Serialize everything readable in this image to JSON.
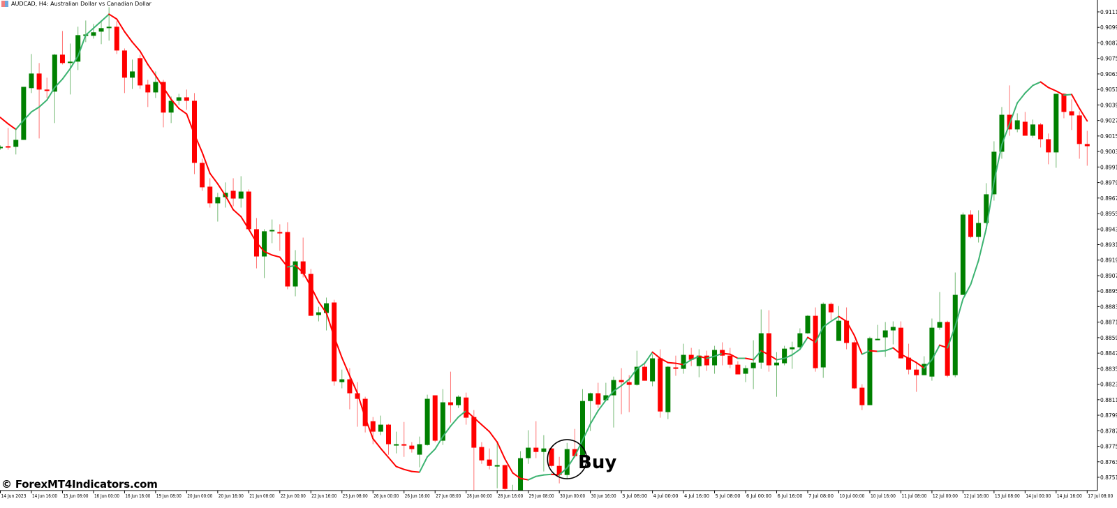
{
  "header": {
    "symbol": "AUDCAD, H4:  Australian Dollar vs Canadian Dollar",
    "icon": "chart-window-icon"
  },
  "watermark": "© ForexMT4Indicators.com",
  "colors": {
    "bull": "#008000",
    "bear": "#ff0000",
    "ma_up": "#3cb371",
    "ma_down": "#ff0000",
    "axis": "#000000",
    "background": "#ffffff"
  },
  "chart_data": {
    "type": "candlestick",
    "title": "AUDCAD, H4:  Australian Dollar vs Canadian Dollar",
    "ylim": [
      0.8745,
      0.9117
    ],
    "grid": false,
    "y_ticks": [
      "0.91110",
      "0.90990",
      "0.90870",
      "0.90750",
      "0.90630",
      "0.90510",
      "0.90390",
      "0.90270",
      "0.90150",
      "0.90030",
      "0.89910",
      "0.89790",
      "0.89670",
      "0.89550",
      "0.89430",
      "0.89310",
      "0.89190",
      "0.89070",
      "0.88950",
      "0.88830",
      "0.88710",
      "0.88590",
      "0.88470",
      "0.88350",
      "0.88230",
      "0.88110",
      "0.87990",
      "0.87870",
      "0.87750",
      "0.87630",
      "0.87510"
    ],
    "x_ticks": [
      "14 Jun 2023",
      "14 Jun 16:00",
      "15 Jun 08:00",
      "16 Jun 00:00",
      "16 Jun 16:00",
      "19 Jun 08:00",
      "20 Jun 00:00",
      "20 Jun 16:00",
      "21 Jun 08:00",
      "22 Jun 00:00",
      "22 Jun 16:00",
      "23 Jun 08:00",
      "26 Jun 00:00",
      "26 Jun 16:00",
      "27 Jun 08:00",
      "28 Jun 00:00",
      "28 Jun 16:00",
      "29 Jun 08:00",
      "30 Jun 00:00",
      "30 Jun 16:00",
      "3 Jul 08:00",
      "4 Jul 00:00",
      "4 Jul 16:00",
      "5 Jul 08:00",
      "6 Jul 00:00",
      "6 Jul 16:00",
      "7 Jul 08:00",
      "10 Jul 00:00",
      "10 Jul 16:00",
      "11 Jul 08:00",
      "12 Jul 00:00",
      "12 Jul 16:00",
      "13 Jul 08:00",
      "14 Jul 00:00",
      "14 Jul 16:00",
      "17 Jul 08:00"
    ],
    "ohlc_fields": [
      "open",
      "high",
      "low",
      "close"
    ],
    "ohlc": [
      [
        0.90055,
        0.90077,
        0.90044,
        0.90066
      ],
      [
        0.90071,
        0.90212,
        0.90044,
        0.90066
      ],
      [
        0.90066,
        0.90212,
        0.90007,
        0.9012
      ],
      [
        0.9012,
        0.9053,
        0.9012,
        0.9053
      ],
      [
        0.9052,
        0.90784,
        0.90482,
        0.90633
      ],
      [
        0.90633,
        0.90714,
        0.90131,
        0.90509
      ],
      [
        0.90509,
        0.90601,
        0.90444,
        0.90498
      ],
      [
        0.90493,
        0.90784,
        0.9025,
        0.90779
      ],
      [
        0.90779,
        0.90962,
        0.90703,
        0.90714
      ],
      [
        0.90714,
        0.90865,
        0.90471,
        0.90725
      ],
      [
        0.90725,
        0.90995,
        0.9066,
        0.9093
      ],
      [
        0.9093,
        0.91043,
        0.90876,
        0.90935
      ],
      [
        0.90925,
        0.91016,
        0.90903,
        0.90952
      ],
      [
        0.90957,
        0.91043,
        0.9086,
        0.90984
      ],
      [
        0.90984,
        0.91146,
        0.90887,
        0.90995
      ],
      [
        0.90995,
        0.91038,
        0.90784,
        0.90811
      ],
      [
        0.90811,
        0.90827,
        0.90482,
        0.90601
      ],
      [
        0.90601,
        0.90741,
        0.90514,
        0.90649
      ],
      [
        0.90752,
        0.90779,
        0.90514,
        0.90541
      ],
      [
        0.90547,
        0.90584,
        0.90374,
        0.90487
      ],
      [
        0.90487,
        0.90649,
        0.90444,
        0.90568
      ],
      [
        0.90568,
        0.90584,
        0.90217,
        0.90331
      ],
      [
        0.90331,
        0.90455,
        0.9025,
        0.90422
      ],
      [
        0.90422,
        0.90476,
        0.9039,
        0.90449
      ],
      [
        0.90449,
        0.90509,
        0.90352,
        0.90422
      ],
      [
        0.90422,
        0.90482,
        0.89855,
        0.89942
      ],
      [
        0.89942,
        0.89974,
        0.89726,
        0.89753
      ],
      [
        0.89758,
        0.89823,
        0.89596,
        0.89629
      ],
      [
        0.89629,
        0.8971,
        0.89488,
        0.89677
      ],
      [
        0.89677,
        0.89791,
        0.89596,
        0.8971
      ],
      [
        0.89726,
        0.89823,
        0.89607,
        0.89666
      ],
      [
        0.89666,
        0.89839,
        0.89596,
        0.8972
      ],
      [
        0.8972,
        0.89737,
        0.89423,
        0.89429
      ],
      [
        0.89429,
        0.89515,
        0.89126,
        0.89218
      ],
      [
        0.89218,
        0.89429,
        0.89051,
        0.89413
      ],
      [
        0.89413,
        0.89504,
        0.89321,
        0.89423
      ],
      [
        0.89407,
        0.89467,
        0.89261,
        0.89402
      ],
      [
        0.89407,
        0.89483,
        0.88964,
        0.88986
      ],
      [
        0.88986,
        0.89267,
        0.8891,
        0.8918
      ],
      [
        0.8918,
        0.89364,
        0.89056,
        0.89083
      ],
      [
        0.89083,
        0.89121,
        0.88759,
        0.88759
      ],
      [
        0.88765,
        0.88829,
        0.88716,
        0.88786
      ],
      [
        0.88781,
        0.889,
        0.88646,
        0.88856
      ],
      [
        0.88862,
        0.88883,
        0.88219,
        0.88252
      ],
      [
        0.88246,
        0.88343,
        0.88198,
        0.88268
      ],
      [
        0.88268,
        0.88354,
        0.88036,
        0.8816
      ],
      [
        0.8816,
        0.88246,
        0.87901,
        0.88117
      ],
      [
        0.88117,
        0.88133,
        0.87857,
        0.87906
      ],
      [
        0.87944,
        0.87976,
        0.87766,
        0.87863
      ],
      [
        0.87863,
        0.87987,
        0.87836,
        0.87917
      ],
      [
        0.87917,
        0.87922,
        0.87685,
        0.87766
      ],
      [
        0.87766,
        0.87863,
        0.87695,
        0.87766
      ],
      [
        0.87766,
        0.87938,
        0.87668,
        0.87755
      ],
      [
        0.87755,
        0.87782,
        0.87701,
        0.87728
      ],
      [
        0.87685,
        0.87825,
        0.87587,
        0.87766
      ],
      [
        0.8776,
        0.88149,
        0.87755,
        0.88117
      ],
      [
        0.88144,
        0.88144,
        0.87782,
        0.87793
      ],
      [
        0.87793,
        0.88192,
        0.8776,
        0.8809
      ],
      [
        0.8809,
        0.88327,
        0.87933,
        0.88068
      ],
      [
        0.88068,
        0.88144,
        0.88046,
        0.88133
      ],
      [
        0.88127,
        0.88165,
        0.87917,
        0.87971
      ],
      [
        0.87976,
        0.8803,
        0.87382,
        0.87739
      ],
      [
        0.87744,
        0.87782,
        0.87614,
        0.87641
      ],
      [
        0.87647,
        0.87733,
        0.87571,
        0.87598
      ],
      [
        0.87598,
        0.87776,
        0.87425,
        0.87604
      ],
      [
        0.87604,
        0.87609,
        0.87388,
        0.8742
      ],
      [
        0.87398,
        0.87452,
        0.87366,
        0.87404
      ],
      [
        0.87404,
        0.87712,
        0.87404,
        0.87658
      ],
      [
        0.87658,
        0.87874,
        0.87614,
        0.87739
      ],
      [
        0.87739,
        0.87944,
        0.87658,
        0.87706
      ],
      [
        0.87706,
        0.87836,
        0.87555,
        0.87733
      ],
      [
        0.87733,
        0.87739,
        0.87587,
        0.87598
      ],
      [
        0.87598,
        0.87668,
        0.87463,
        0.87528
      ],
      [
        0.87528,
        0.87776,
        0.87501,
        0.87728
      ],
      [
        0.87728,
        0.87884,
        0.87663,
        0.87674
      ],
      [
        0.87668,
        0.88192,
        0.87668,
        0.881
      ],
      [
        0.881,
        0.88165,
        0.87868,
        0.8816
      ],
      [
        0.8816,
        0.88241,
        0.88046,
        0.88073
      ],
      [
        0.88106,
        0.88241,
        0.881,
        0.88144
      ],
      [
        0.88144,
        0.88289,
        0.87895,
        0.88262
      ],
      [
        0.88262,
        0.88354,
        0.87998,
        0.88246
      ],
      [
        0.88246,
        0.883,
        0.88014,
        0.88225
      ],
      [
        0.88225,
        0.88489,
        0.88219,
        0.88365
      ],
      [
        0.88365,
        0.88403,
        0.88257,
        0.88257
      ],
      [
        0.88252,
        0.88462,
        0.88214,
        0.8843
      ],
      [
        0.8843,
        0.885,
        0.87971,
        0.88019
      ],
      [
        0.88014,
        0.8837,
        0.8796,
        0.88365
      ],
      [
        0.8836,
        0.88451,
        0.88295,
        0.88349
      ],
      [
        0.88349,
        0.88543,
        0.88311,
        0.88457
      ],
      [
        0.88457,
        0.88511,
        0.8837,
        0.88419
      ],
      [
        0.8837,
        0.885,
        0.88284,
        0.88451
      ],
      [
        0.88451,
        0.88489,
        0.88333,
        0.88376
      ],
      [
        0.88376,
        0.88527,
        0.88311,
        0.88495
      ],
      [
        0.88495,
        0.88554,
        0.88376,
        0.88451
      ],
      [
        0.88451,
        0.88511,
        0.88354,
        0.88381
      ],
      [
        0.88381,
        0.88408,
        0.88306,
        0.88306
      ],
      [
        0.88311,
        0.88376,
        0.88246,
        0.88354
      ],
      [
        0.88354,
        0.8857,
        0.88192,
        0.88397
      ],
      [
        0.88397,
        0.88808,
        0.88349,
        0.88624
      ],
      [
        0.88624,
        0.88802,
        0.88327,
        0.88376
      ],
      [
        0.88376,
        0.88478,
        0.88133,
        0.88397
      ],
      [
        0.88392,
        0.88527,
        0.88376,
        0.88505
      ],
      [
        0.885,
        0.88559,
        0.88349,
        0.88516
      ],
      [
        0.88516,
        0.88662,
        0.885,
        0.88624
      ],
      [
        0.88624,
        0.88765,
        0.88619,
        0.88759
      ],
      [
        0.88759,
        0.88824,
        0.88327,
        0.88354
      ],
      [
        0.8836,
        0.88862,
        0.88279,
        0.88851
      ],
      [
        0.88851,
        0.88862,
        0.88727,
        0.88786
      ],
      [
        0.88565,
        0.88835,
        0.88565,
        0.88721
      ],
      [
        0.88721,
        0.88824,
        0.885,
        0.88549
      ],
      [
        0.88554,
        0.8857,
        0.88192,
        0.88198
      ],
      [
        0.88203,
        0.8823,
        0.8803,
        0.88068
      ],
      [
        0.88068,
        0.88597,
        0.88068,
        0.88586
      ],
      [
        0.88576,
        0.88689,
        0.88576,
        0.88581
      ],
      [
        0.88592,
        0.88711,
        0.88441,
        0.88646
      ],
      [
        0.88646,
        0.88716,
        0.88538,
        0.88673
      ],
      [
        0.88667,
        0.88716,
        0.8843,
        0.8843
      ],
      [
        0.88435,
        0.88543,
        0.88306,
        0.88343
      ],
      [
        0.88343,
        0.88392,
        0.88171,
        0.883
      ],
      [
        0.883,
        0.88446,
        0.883,
        0.88387
      ],
      [
        0.88289,
        0.88738,
        0.88257,
        0.88667
      ],
      [
        0.88667,
        0.88943,
        0.88651,
        0.88711
      ],
      [
        0.88711,
        0.88721,
        0.88284,
        0.88295
      ],
      [
        0.883,
        0.89094,
        0.88284,
        0.88921
      ],
      [
        0.88921,
        0.89558,
        0.88921,
        0.89542
      ],
      [
        0.89542,
        0.89575,
        0.89359,
        0.89369
      ],
      [
        0.89369,
        0.89575,
        0.89326,
        0.89477
      ],
      [
        0.89477,
        0.89785,
        0.89472,
        0.89699
      ],
      [
        0.89699,
        0.90109,
        0.8965,
        0.90028
      ],
      [
        0.90028,
        0.90374,
        0.89974,
        0.90314
      ],
      [
        0.90314,
        0.90541,
        0.90152,
        0.90201
      ],
      [
        0.90201,
        0.90325,
        0.90179,
        0.90271
      ],
      [
        0.9026,
        0.90336,
        0.90152,
        0.90152
      ],
      [
        0.90152,
        0.90277,
        0.90136,
        0.90239
      ],
      [
        0.90239,
        0.9025,
        0.90061,
        0.90125
      ],
      [
        0.90125,
        0.90169,
        0.89931,
        0.90023
      ],
      [
        0.90023,
        0.90476,
        0.89904,
        0.90476
      ],
      [
        0.90476,
        0.90482,
        0.90287,
        0.90336
      ],
      [
        0.90341,
        0.90433,
        0.90196,
        0.90309
      ],
      [
        0.90309,
        0.90341,
        0.89974,
        0.90088
      ],
      [
        0.90088,
        0.9019,
        0.8992,
        0.90071
      ]
    ],
    "ma": [
      0.90293,
      0.90244,
      0.90201,
      0.90271,
      0.90336,
      0.90374,
      0.90428,
      0.90525,
      0.9059,
      0.90671,
      0.90768,
      0.9093,
      0.90984,
      0.91038,
      0.91092,
      0.91054,
      0.90957,
      0.90876,
      0.90806,
      0.90703,
      0.90617,
      0.90525,
      0.90433,
      0.90363,
      0.9032,
      0.90163,
      0.90023,
      0.89861,
      0.8978,
      0.89688,
      0.8958,
      0.89526,
      0.89429,
      0.89326,
      0.89256,
      0.89229,
      0.89213,
      0.89137,
      0.89148,
      0.89094,
      0.88986,
      0.88867,
      0.88781,
      0.88597,
      0.88435,
      0.88295,
      0.8816,
      0.87971,
      0.87809,
      0.87733,
      0.87663,
      0.87593,
      0.87571,
      0.87555,
      0.8755,
      0.87668,
      0.87728,
      0.87825,
      0.87906,
      0.87976,
      0.88025,
      0.87971,
      0.87917,
      0.87863,
      0.87782,
      0.87652,
      0.87544,
      0.87501,
      0.8749,
      0.87517,
      0.87528,
      0.87533,
      0.87528,
      0.87582,
      0.87674,
      0.87798,
      0.87922,
      0.88025,
      0.88106,
      0.88176,
      0.88219,
      0.88268,
      0.88349,
      0.88392,
      0.88478,
      0.8843,
      0.88397,
      0.88392,
      0.88381,
      0.88419,
      0.88446,
      0.8843,
      0.88446,
      0.88468,
      0.88462,
      0.8843,
      0.8843,
      0.88419,
      0.88489,
      0.88457,
      0.88419,
      0.8843,
      0.88457,
      0.885,
      0.88592,
      0.88554,
      0.88673,
      0.88716,
      0.88754,
      0.88716,
      0.88608,
      0.88462,
      0.88489,
      0.88484,
      0.88489,
      0.88511,
      0.88462,
      0.8843,
      0.88397,
      0.88354,
      0.88419,
      0.88532,
      0.88511,
      0.88678,
      0.88889,
      0.89002,
      0.89186,
      0.89434,
      0.89796,
      0.90082,
      0.90244,
      0.90406,
      0.90482,
      0.90541,
      0.90568,
      0.90525,
      0.90498,
      0.90466,
      0.90471,
      0.90363,
      0.90266
    ],
    "annotation": {
      "text": "Buy",
      "candle_index": 73,
      "price": 0.8765
    }
  }
}
